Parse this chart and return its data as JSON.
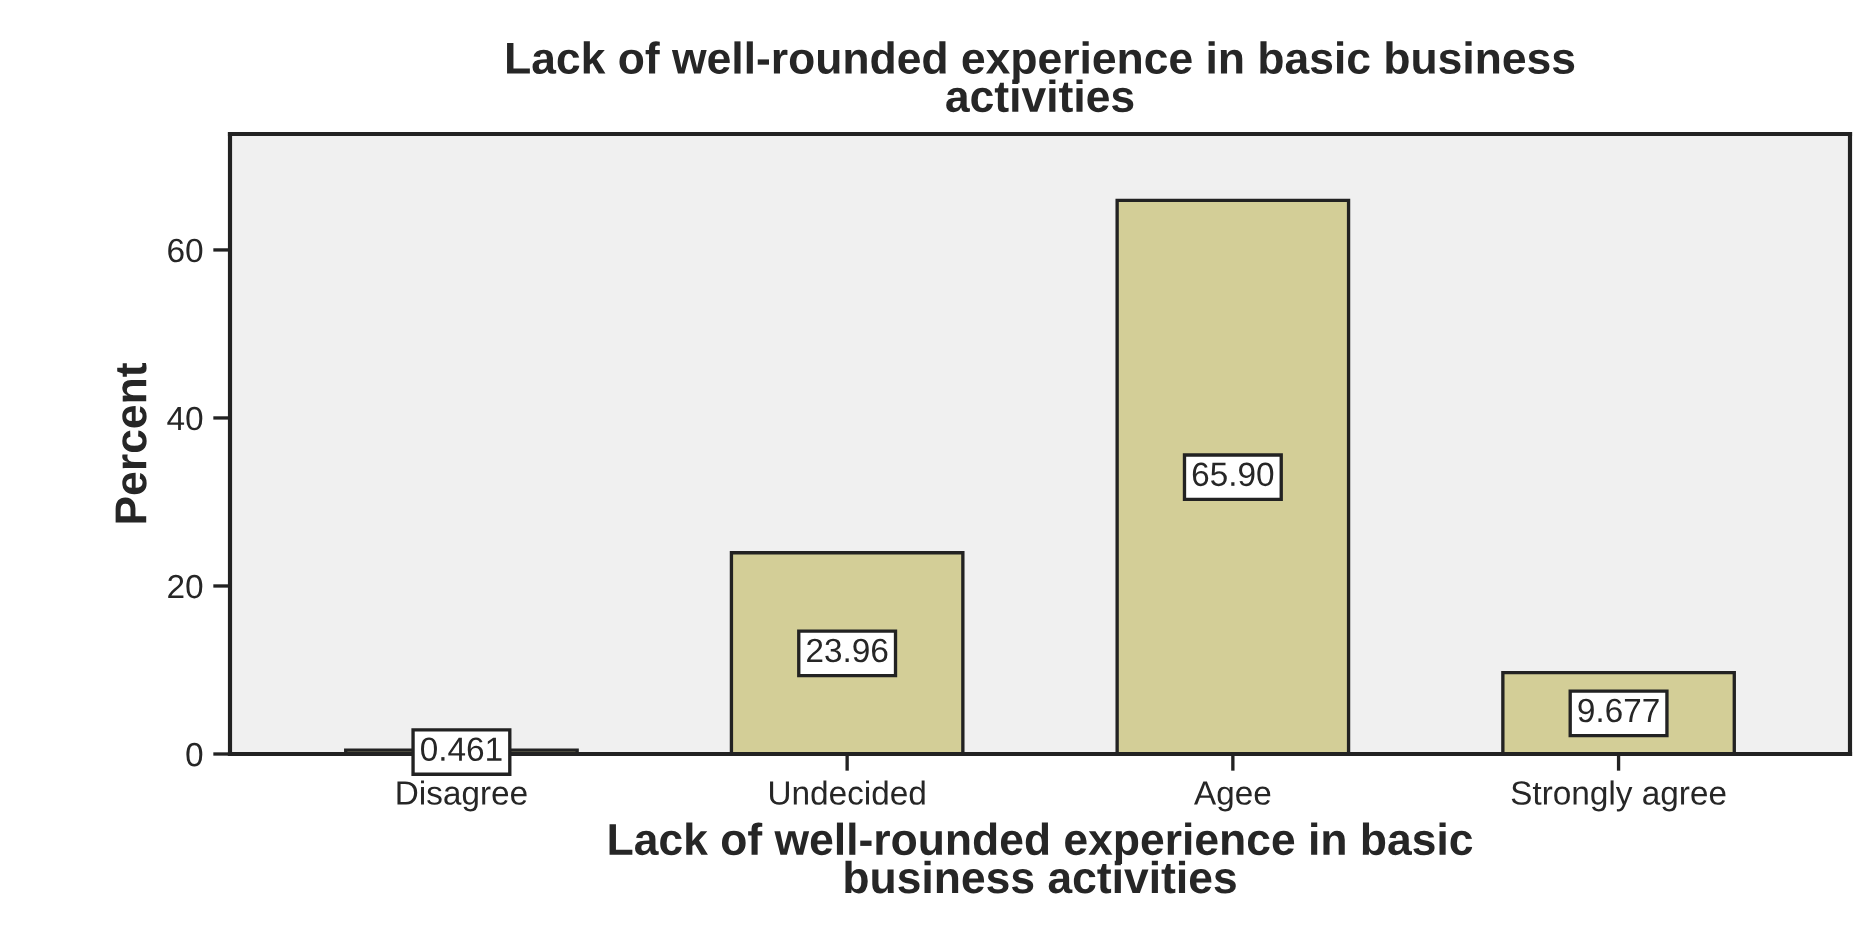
{
  "chart_data": {
    "type": "bar",
    "title": "Lack of well-rounded experience in basic business\nactivities",
    "xlabel": "Lack of well-rounded experience in basic\nbusiness activities",
    "ylabel": "Percent",
    "categories": [
      "Disagree",
      "Undecided",
      "Agee",
      "Strongly agree"
    ],
    "values": [
      0.461,
      23.96,
      65.9,
      9.677
    ],
    "value_labels": [
      "0.461",
      "23.96",
      "65.90",
      "9.677"
    ],
    "color": "#d3ce97",
    "ylim": [
      0,
      73.8
    ],
    "yticks": [
      0,
      20,
      40,
      60
    ],
    "grid": false
  }
}
